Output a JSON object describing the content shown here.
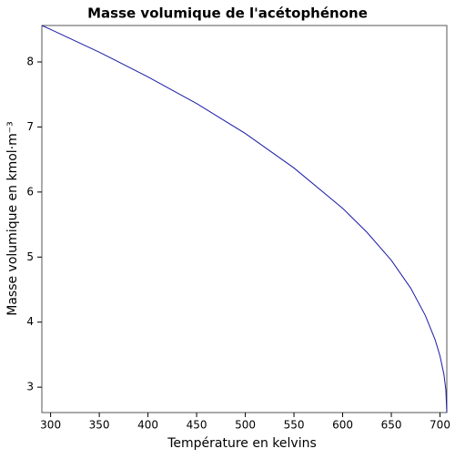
{
  "chart_data": {
    "type": "line",
    "title": "Masse volumique de l'acétophénone",
    "x_label": "Température en kelvins",
    "y_label": "Masse volumique en kmol·m⁻³",
    "x": [
      291,
      300,
      320,
      350,
      400,
      450,
      500,
      550,
      600,
      625,
      650,
      670,
      685,
      695,
      700,
      704,
      706,
      707
    ],
    "series": [
      {
        "name": "Masse volumique",
        "color": "#1a1aa6",
        "values": [
          8.56,
          8.5,
          8.36,
          8.15,
          7.77,
          7.36,
          6.9,
          6.37,
          5.75,
          5.38,
          4.95,
          4.52,
          4.1,
          3.73,
          3.48,
          3.2,
          2.96,
          2.61
        ]
      }
    ],
    "xlim": [
      291,
      707
    ],
    "ylim": [
      2.61,
      8.56
    ],
    "xticks": [
      300,
      350,
      400,
      450,
      500,
      550,
      600,
      650,
      700
    ],
    "yticks": [
      3,
      4,
      5,
      6,
      7,
      8
    ],
    "grid": false
  }
}
